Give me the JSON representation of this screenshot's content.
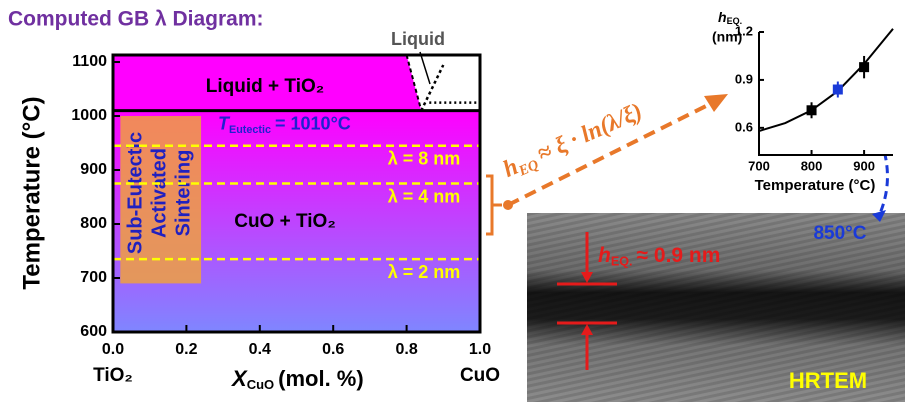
{
  "title": "Computed GB λ Diagram:",
  "chart_data": [
    {
      "type": "phase-diagram",
      "x_label": {
        "symbol": "X",
        "subscript": "CuO",
        "unit": "(mol. %)"
      },
      "y_label": "Temperature (°C)",
      "xlim": [
        0,
        1
      ],
      "ylim": [
        600,
        1113
      ],
      "xticks": [
        {
          "value": 0,
          "label": "0.0"
        },
        {
          "value": 0.2,
          "label": "0.2"
        },
        {
          "value": 0.4,
          "label": "0.4"
        },
        {
          "value": 0.6,
          "label": "0.6"
        },
        {
          "value": 0.8,
          "label": "0.8"
        },
        {
          "value": 1,
          "label": "1.0"
        }
      ],
      "yticks": [
        600,
        700,
        800,
        900,
        1000,
        1100
      ],
      "end_labels": [
        "TiO₂",
        "CuO"
      ],
      "eutectic": {
        "value": 1010,
        "label": {
          "symbol": "T",
          "subscript": "Eutectic",
          "text": "= 1010°C"
        }
      },
      "liquidus": {
        "x": [
          0.8,
          0.84
        ],
        "y": [
          1113,
          1010
        ]
      },
      "regions": {
        "liquid_tio2": "Liquid + TiO₂",
        "cuo_tio2": "CuO + TiO₂",
        "liquid": "Liquid"
      },
      "sintering": [
        "Sub-Eutectic",
        "Activated",
        "Sintering"
      ],
      "lambda_lines": [
        {
          "value": 945,
          "label": "λ = 8 nm"
        },
        {
          "value": 875,
          "label": "λ = 4 nm"
        },
        {
          "value": 735,
          "label": "λ = 2 nm"
        }
      ]
    },
    {
      "type": "scatter",
      "x_label": "Temperature (°C)",
      "y_label": {
        "symbol": "h",
        "subscript": "EQ.",
        "unit": "(nm)"
      },
      "xlim": [
        700,
        955
      ],
      "ylim": [
        0.43,
        1.2
      ],
      "xticks": [
        700,
        800,
        900
      ],
      "yticks": [
        0.6,
        0.9,
        1.2
      ],
      "x": [
        800,
        850,
        900
      ],
      "y": [
        0.71,
        0.84,
        0.98
      ],
      "yerr": [
        0.05,
        0.05,
        0.07
      ],
      "point_colors": [
        "#000000",
        "#1a3ad8",
        "#000000"
      ],
      "fit": {
        "x": [
          700,
          750,
          800,
          850,
          900,
          955
        ],
        "y": [
          0.58,
          0.63,
          0.71,
          0.83,
          1.0,
          1.22
        ]
      }
    }
  ],
  "annotations": {
    "equation": {
      "symbol": "h",
      "subscript": "EQ",
      "text": "≈ ξ · ln(λ/ξ)"
    },
    "arrow_label": "850°C",
    "thickness": {
      "symbol": "h",
      "subscript": "EQ.",
      "text": "≈ 0.9 nm"
    },
    "image_label": "HRTEM"
  }
}
